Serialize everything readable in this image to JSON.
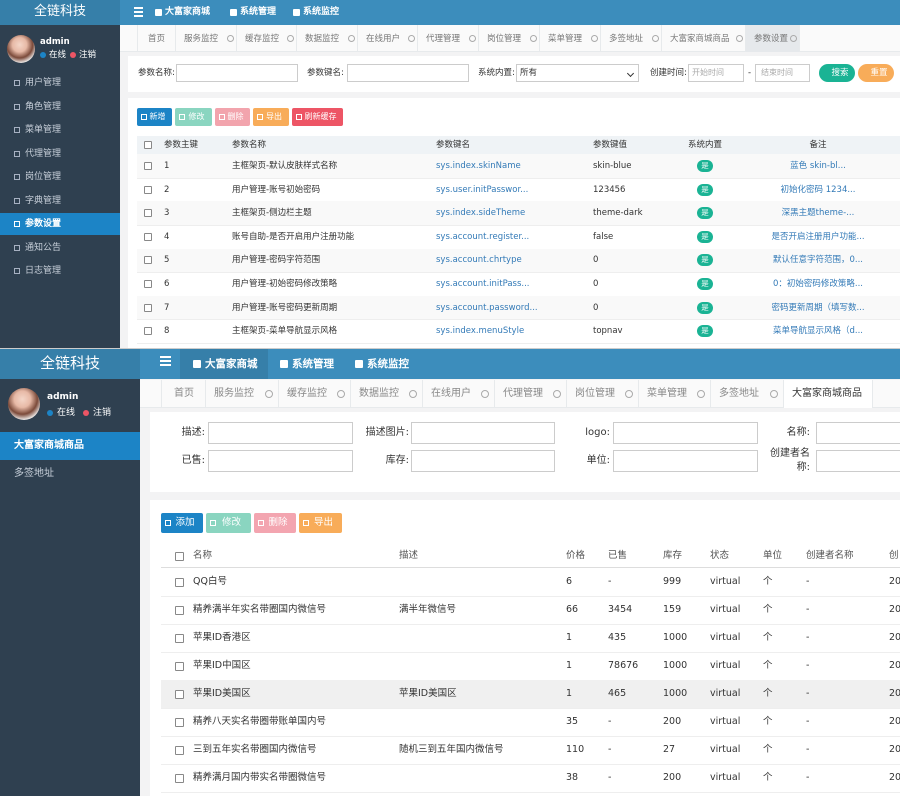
{
  "top": {
    "brand": "全链科技",
    "nav": [
      "大富家商城",
      "系统管理",
      "系统监控"
    ],
    "user": {
      "name": "admin",
      "status": "在线",
      "logout": "注销"
    },
    "menu": [
      "用户管理",
      "角色管理",
      "菜单管理",
      "代理管理",
      "岗位管理",
      "字典管理",
      "参数设置",
      "通知公告",
      "日志管理"
    ],
    "tabs": [
      "首页",
      "服务监控",
      "缓存监控",
      "数据监控",
      "在线用户",
      "代理管理",
      "岗位管理",
      "菜单管理",
      "多签地址",
      "大富家商城商品",
      "参数设置"
    ],
    "search": {
      "labels": [
        "参数名称:",
        "参数键名:",
        "系统内置:",
        "创建时间:"
      ],
      "select": "所有",
      "start": "开始时间",
      "separator": "-",
      "end": "结束时间",
      "buttons": [
        "搜索",
        "重置"
      ]
    },
    "toolbar": [
      "新增",
      "修改",
      "删除",
      "导出",
      "刷新缓存"
    ],
    "table": {
      "headers": [
        "参数主键",
        "参数名称",
        "参数键名",
        "参数键值",
        "系统内置",
        "备注"
      ],
      "rows": [
        [
          "1",
          "主框架页-默认皮肤样式名称",
          "sys.index.skinName",
          "skin-blue",
          "是",
          "蓝色 skin-bl..."
        ],
        [
          "2",
          "用户管理-账号初始密码",
          "sys.user.initPasswor...",
          "123456",
          "是",
          "初始化密码 1234..."
        ],
        [
          "3",
          "主框架页-侧边栏主题",
          "sys.index.sideTheme",
          "theme-dark",
          "是",
          "深黑主题theme-..."
        ],
        [
          "4",
          "账号自助-是否开启用户注册功能",
          "sys.account.register...",
          "false",
          "是",
          "是否开启注册用户功能..."
        ],
        [
          "5",
          "用户管理-密码字符范围",
          "sys.account.chrtype",
          "0",
          "是",
          "默认任意字符范围，0..."
        ],
        [
          "6",
          "用户管理-初始密码修改策略",
          "sys.account.initPass...",
          "0",
          "是",
          "0：初始密码修改策略..."
        ],
        [
          "7",
          "用户管理-账号密码更新周期",
          "sys.account.password...",
          "0",
          "是",
          "密码更新周期（填写数..."
        ],
        [
          "8",
          "主框架页-菜单导航显示风格",
          "sys.index.menuStyle",
          "topnav",
          "是",
          "菜单导航显示风格（d..."
        ]
      ]
    }
  },
  "bottom": {
    "brand": "全链科技",
    "nav": [
      "大富家商城",
      "系统管理",
      "系统监控"
    ],
    "user": {
      "name": "admin",
      "status": "在线",
      "logout": "注销"
    },
    "menu": [
      "大富家商城商品",
      "多签地址"
    ],
    "tabs": [
      "首页",
      "服务监控",
      "缓存监控",
      "数据监控",
      "在线用户",
      "代理管理",
      "岗位管理",
      "菜单管理",
      "多签地址",
      "大富家商城商品"
    ],
    "form": {
      "labels": [
        "描述:",
        "描述图片:",
        "logo:",
        "名称:",
        "已售:",
        "库存:",
        "单位:",
        "创建者名称:"
      ]
    },
    "toolbar": [
      "添加",
      "修改",
      "删除",
      "导出"
    ],
    "table": {
      "headers": [
        "名称",
        "描述",
        "价格",
        "已售",
        "库存",
        "状态",
        "单位",
        "创建者名称",
        "创"
      ],
      "rows": [
        [
          "QQ白号",
          null,
          "6",
          "-",
          "999",
          "virtual",
          "个",
          "-",
          "20"
        ],
        [
          "精养满半年实名带圈国内微信号",
          "满半年微信号",
          "66",
          "3454",
          "159",
          "virtual",
          "个",
          "-",
          "20"
        ],
        [
          "苹果ID香港区",
          null,
          "1",
          "435",
          "1000",
          "virtual",
          "个",
          "-",
          "20"
        ],
        [
          "苹果ID中国区",
          null,
          "1",
          "78676",
          "1000",
          "virtual",
          "个",
          "-",
          "20"
        ],
        [
          "苹果ID美国区",
          "苹果ID美国区",
          "1",
          "465",
          "1000",
          "virtual",
          "个",
          "-",
          "20"
        ],
        [
          "精养八天实名带圈带账单国内号",
          null,
          "35",
          "-",
          "200",
          "virtual",
          "个",
          "-",
          "20"
        ],
        [
          "三到五年实名带圈国内微信号",
          "随机三到五年国内微信号",
          "110",
          "-",
          "27",
          "virtual",
          "个",
          "-",
          "20"
        ],
        [
          "精养满月国内带实名带圈微信号",
          null,
          "38",
          "-",
          "200",
          "virtual",
          "个",
          "-",
          "20"
        ]
      ]
    }
  }
}
